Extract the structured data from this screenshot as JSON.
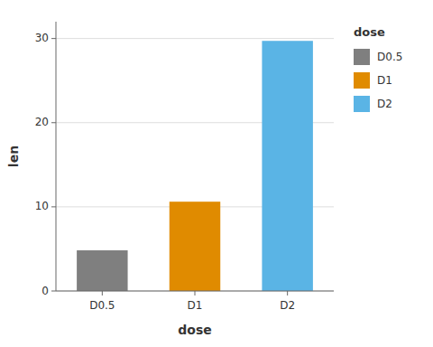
{
  "chart_data": {
    "type": "bar",
    "categories": [
      "D0.5",
      "D1",
      "D2"
    ],
    "values": [
      4.83,
      10.61,
      29.72
    ],
    "colors": [
      "#7f7f7f",
      "#e08b00",
      "#5ab4e5"
    ],
    "xlabel": "dose",
    "ylabel": "len",
    "legend_title": "dose",
    "legend": "right",
    "ylim": [
      0,
      32
    ],
    "yticks": [
      0,
      10,
      20,
      30
    ],
    "grid": true
  }
}
